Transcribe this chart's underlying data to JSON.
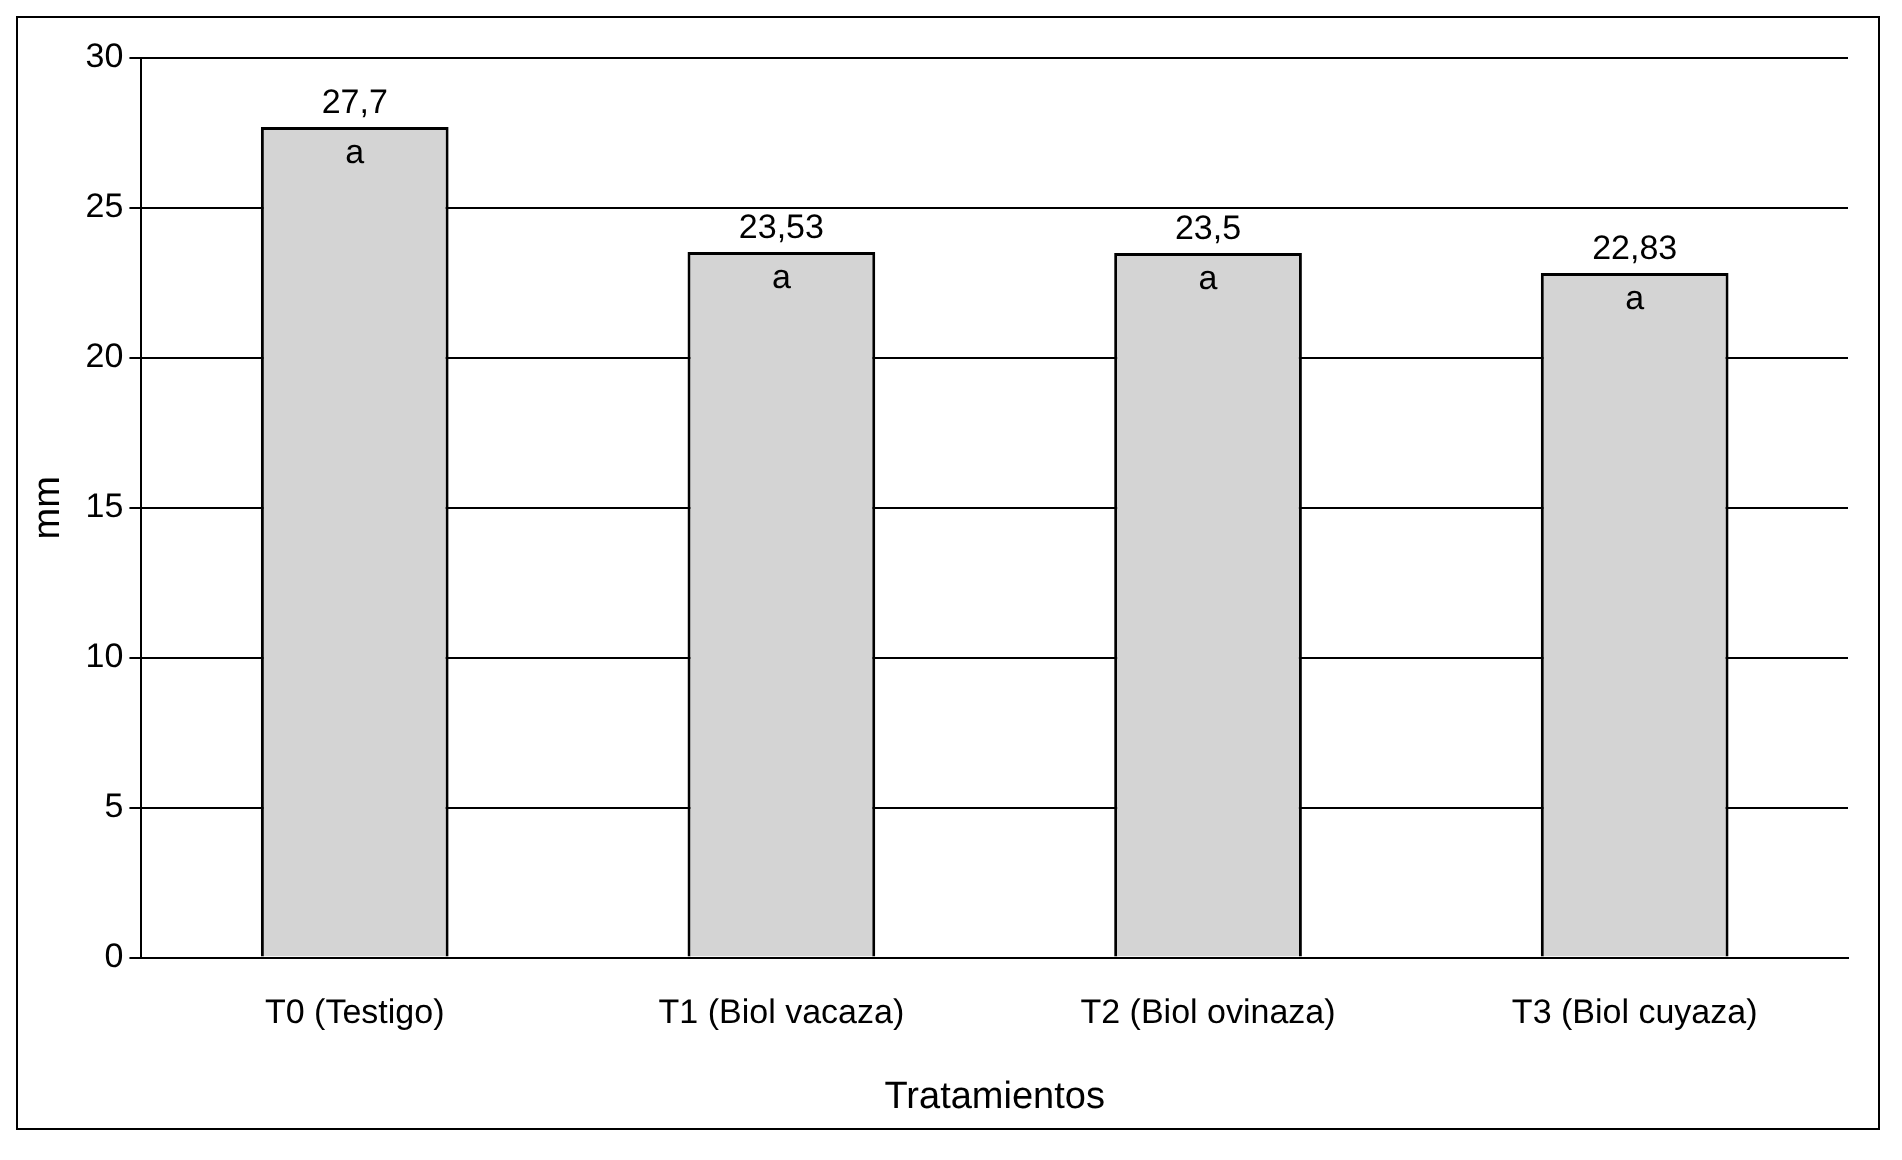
{
  "chart_data": {
    "type": "bar",
    "xlabel": "Tratamientos",
    "ylabel": "mm",
    "categories": [
      "T0 (Testigo)",
      "T1 (Biol vacaza)",
      "T2 (Biol ovinaza)",
      "T3 (Biol cuyaza)"
    ],
    "values": [
      27.7,
      23.53,
      23.5,
      22.83
    ],
    "value_labels": [
      "27,7",
      "23,53",
      "23,5",
      "22,83"
    ],
    "color": "#d4d4d4",
    "ylim": [
      0,
      30
    ],
    "yticks": [
      0,
      5,
      10,
      15,
      20,
      25,
      30
    ],
    "grid": "y",
    "legend": false,
    "annotations": [
      {
        "text": "a",
        "x": "T0 (Testigo)",
        "y": 27.7
      },
      {
        "text": "a",
        "x": "T1 (Biol vacaza)",
        "y": 23.53
      },
      {
        "text": "a",
        "x": "T2 (Biol ovinaza)",
        "y": 23.5
      },
      {
        "text": "a",
        "x": "T3 (Biol cuyaza)",
        "y": 22.83
      }
    ]
  }
}
